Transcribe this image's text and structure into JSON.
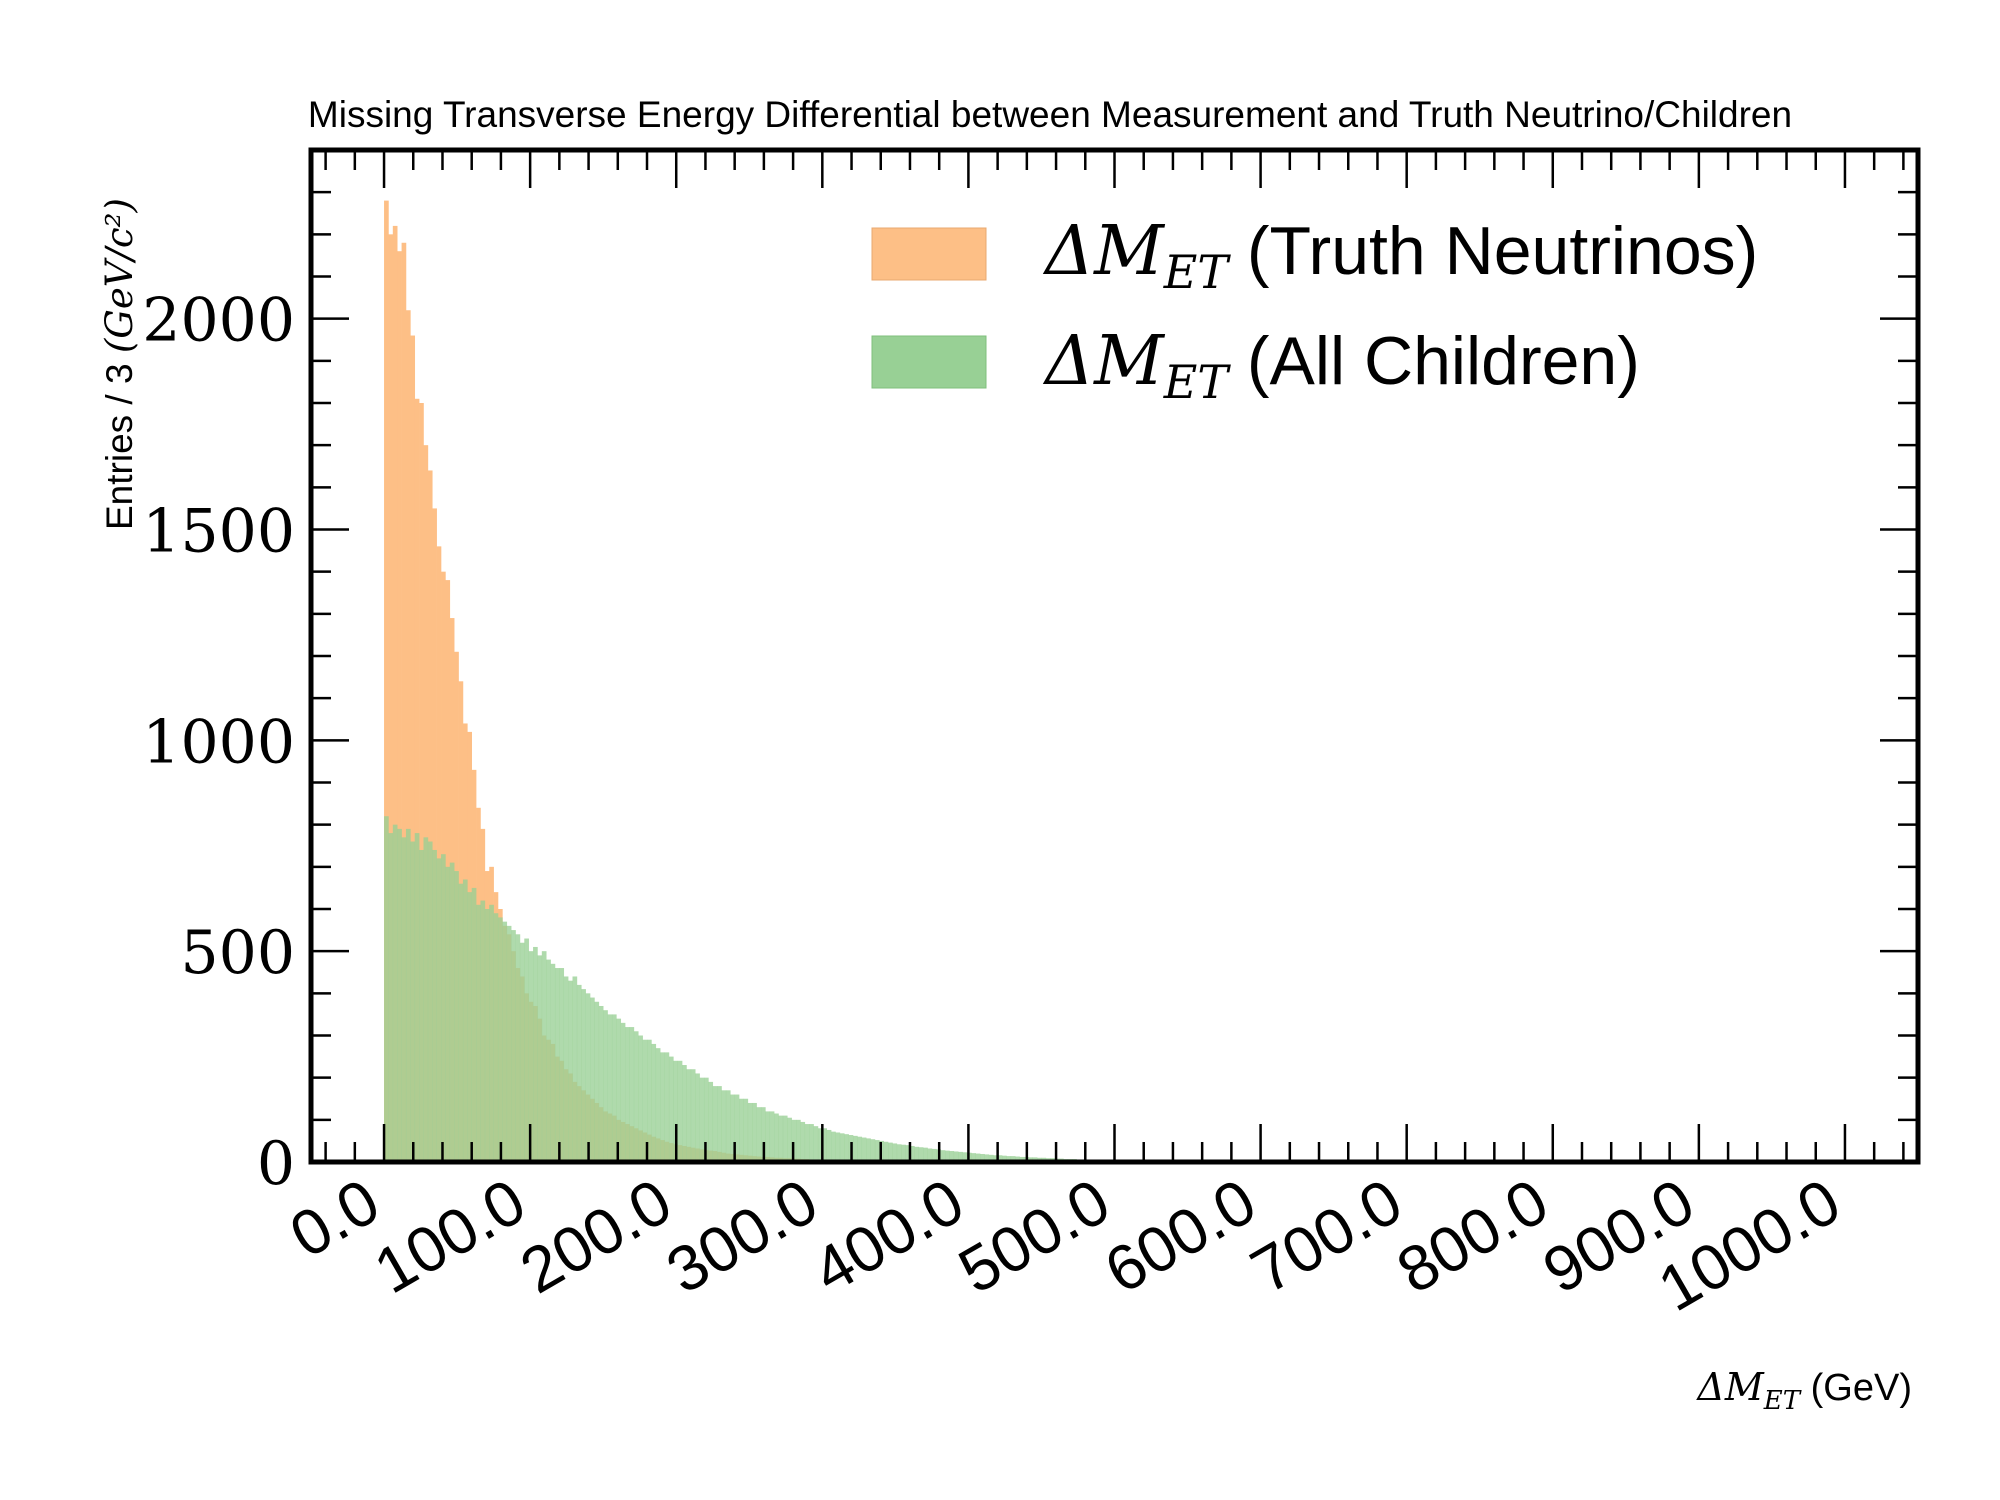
{
  "chart_data": {
    "type": "histogram",
    "title": "Missing Transverse Energy Differential between Measurement and Truth Neutrino/Children",
    "xlabel": {
      "symbol": "ΔM",
      "subscript": "ET",
      "unit": "(GeV)"
    },
    "ylabel": {
      "text": "Entries / 3 ",
      "unit_math": "(GeV/c²)"
    },
    "xlim": [
      -50,
      1050
    ],
    "ylim": [
      0,
      2400
    ],
    "bin_width": 3,
    "x_ticks": [
      0,
      100,
      200,
      300,
      400,
      500,
      600,
      700,
      800,
      900,
      1000
    ],
    "x_tick_labels": [
      "0.0",
      "100.0",
      "200.0",
      "300.0",
      "400.0",
      "500.0",
      "600.0",
      "700.0",
      "800.0",
      "900.0",
      "1000.0"
    ],
    "y_ticks": [
      0,
      500,
      1000,
      1500,
      2000
    ],
    "y_tick_labels": [
      "0",
      "500",
      "1000",
      "1500",
      "2000"
    ],
    "legend_position": "top-right",
    "series": [
      {
        "name": "ΔM",
        "name_sub": "ET",
        "name_suffix": " (Truth Neutrinos)",
        "color": "#fdbf86",
        "x_start": 0,
        "values": [
          2280,
          2200,
          2220,
          2160,
          2180,
          2020,
          1960,
          1810,
          1800,
          1700,
          1640,
          1550,
          1460,
          1400,
          1380,
          1290,
          1210,
          1140,
          1040,
          1020,
          930,
          840,
          790,
          690,
          700,
          640,
          600,
          560,
          540,
          500,
          460,
          440,
          400,
          380,
          370,
          340,
          300,
          290,
          280,
          250,
          240,
          220,
          210,
          190,
          180,
          170,
          160,
          150,
          140,
          130,
          120,
          115,
          110,
          100,
          95,
          90,
          85,
          80,
          75,
          70,
          65,
          60,
          56,
          52,
          48,
          45,
          42,
          40,
          38,
          36,
          34,
          32,
          30,
          28,
          27,
          26,
          24,
          22,
          20,
          19,
          18,
          17,
          16,
          15,
          14,
          13,
          12,
          12,
          11,
          10,
          10,
          9,
          9,
          8,
          8,
          7,
          7,
          6,
          6,
          6,
          5,
          5,
          5,
          4,
          4,
          4,
          4,
          3,
          3,
          3,
          3,
          2,
          2,
          2,
          2,
          2,
          2,
          1,
          1,
          1,
          1,
          1,
          1,
          1,
          1,
          1,
          1,
          1,
          1,
          1,
          1,
          1,
          1
        ]
      },
      {
        "name": "ΔM",
        "name_sub": "ET",
        "name_suffix": " (All Children)",
        "color": "#98d095",
        "x_start": 0,
        "values": [
          820,
          780,
          800,
          790,
          770,
          790,
          760,
          780,
          740,
          770,
          760,
          740,
          720,
          730,
          700,
          710,
          690,
          660,
          670,
          640,
          650,
          610,
          620,
          600,
          610,
          590,
          580,
          570,
          560,
          550,
          540,
          520,
          530,
          500,
          510,
          490,
          500,
          480,
          470,
          460,
          460,
          440,
          430,
          440,
          420,
          410,
          400,
          390,
          380,
          370,
          360,
          350,
          350,
          340,
          330,
          320,
          320,
          310,
          300,
          290,
          290,
          280,
          270,
          260,
          260,
          250,
          240,
          240,
          230,
          220,
          220,
          210,
          200,
          200,
          190,
          180,
          180,
          170,
          170,
          160,
          160,
          150,
          150,
          140,
          140,
          130,
          130,
          120,
          120,
          115,
          110,
          110,
          105,
          100,
          100,
          95,
          90,
          90,
          85,
          80,
          80,
          76,
          72,
          70,
          68,
          66,
          64,
          62,
          60,
          58,
          56,
          54,
          52,
          50,
          48,
          46,
          44,
          42,
          41,
          40,
          38,
          36,
          35,
          34,
          32,
          31,
          30,
          28,
          27,
          26,
          25,
          24,
          23,
          22,
          21,
          20,
          19,
          18,
          17,
          16,
          16,
          15,
          14,
          14,
          13,
          12,
          12,
          11,
          11,
          10,
          10,
          9,
          9,
          8,
          8,
          7,
          7,
          7,
          6,
          6,
          6,
          5,
          5,
          5,
          5,
          4,
          4,
          4,
          4,
          3,
          3,
          3,
          3,
          3,
          3,
          2,
          2,
          2,
          2,
          2,
          2,
          2,
          2,
          1,
          1,
          1,
          1,
          1,
          1,
          1,
          1,
          1,
          1,
          1,
          1,
          1,
          1,
          1,
          1,
          1,
          1,
          1,
          1,
          1,
          1,
          1
        ]
      }
    ]
  }
}
